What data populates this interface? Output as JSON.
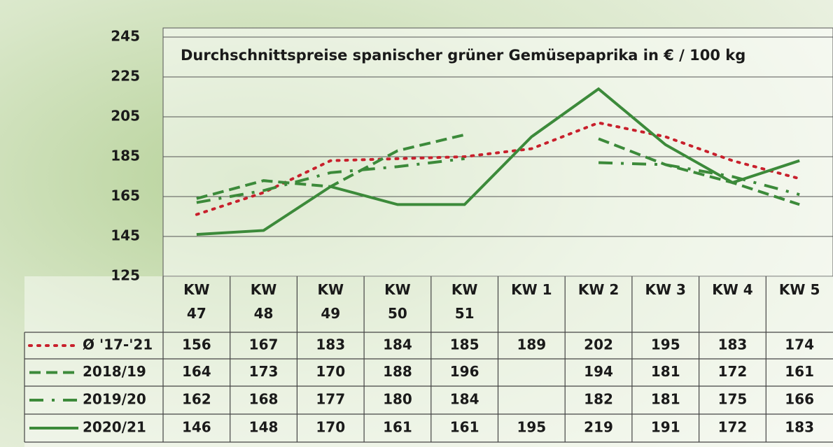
{
  "chart_data": {
    "type": "line",
    "title": "Durchschnittspreise spanischer grüner Gemüsepaprika in € / 100 kg",
    "categories": [
      "KW 47",
      "KW 48",
      "KW 49",
      "KW 50",
      "KW 51",
      "KW 1",
      "KW 2",
      "KW 3",
      "KW 4",
      "KW 5"
    ],
    "series": [
      {
        "name": "Ø '17-'21",
        "color": "#c8202c",
        "line_style": "dotted",
        "values": [
          156,
          167,
          183,
          184,
          185,
          189,
          202,
          195,
          183,
          174
        ]
      },
      {
        "name": "2018/19",
        "color": "#3c8a3a",
        "line_style": "dashed",
        "values": [
          164,
          173,
          170,
          188,
          196,
          null,
          194,
          181,
          172,
          161
        ]
      },
      {
        "name": "2019/20",
        "color": "#3c8a3a",
        "line_style": "dash-dot",
        "values": [
          162,
          168,
          177,
          180,
          184,
          null,
          182,
          181,
          175,
          166
        ]
      },
      {
        "name": "2020/21",
        "color": "#3c8a3a",
        "line_style": "solid",
        "values": [
          146,
          148,
          170,
          161,
          161,
          195,
          219,
          191,
          172,
          183
        ]
      }
    ],
    "ylim": [
      125,
      245
    ],
    "yticks": [
      125,
      145,
      165,
      185,
      205,
      225,
      245
    ],
    "grid": true
  }
}
